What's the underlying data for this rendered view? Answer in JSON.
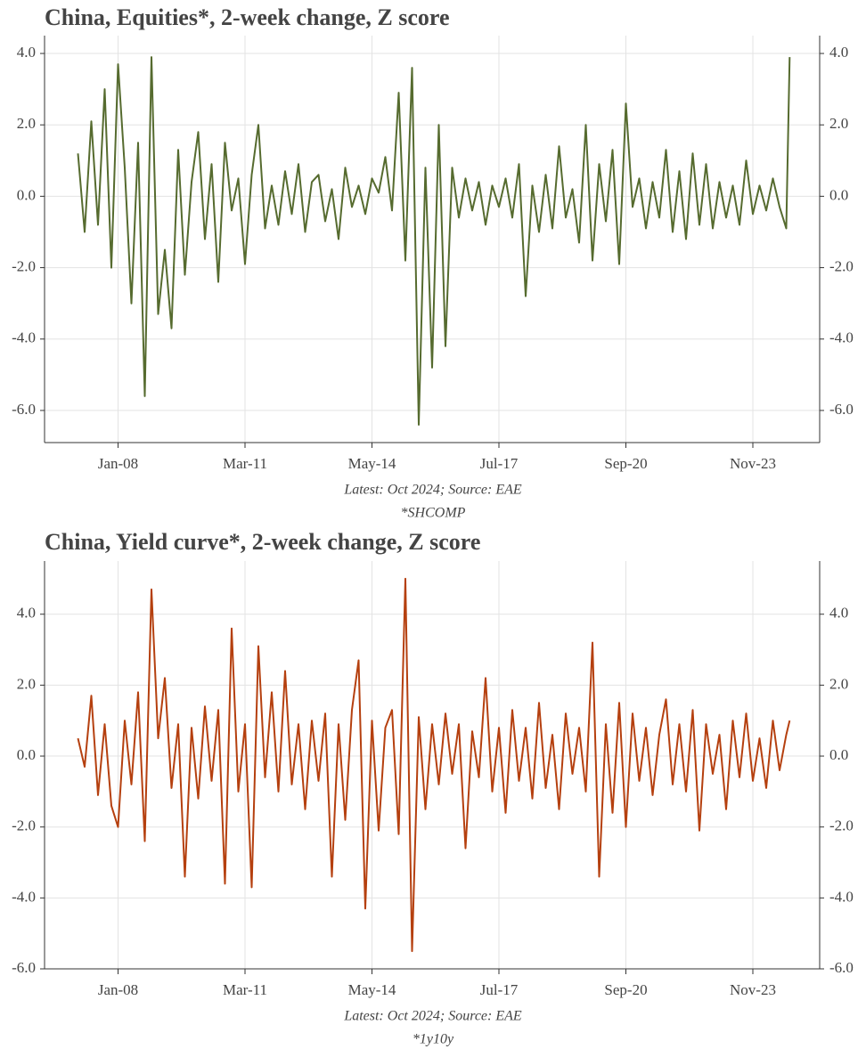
{
  "chart_data": [
    {
      "type": "line",
      "title": "China, Equities*, 2-week change, Z score",
      "annotations": [
        "Latest: Oct 2024; Source: EAE",
        "*SHCOMP"
      ],
      "color": "#566b2f",
      "x": [
        "2007-01",
        "2007-03",
        "2007-05",
        "2007-07",
        "2007-09",
        "2007-11",
        "2008-01",
        "2008-03",
        "2008-05",
        "2008-07",
        "2008-09",
        "2008-11",
        "2009-01",
        "2009-03",
        "2009-05",
        "2009-07",
        "2009-09",
        "2009-11",
        "2010-01",
        "2010-03",
        "2010-05",
        "2010-07",
        "2010-09",
        "2010-11",
        "2011-01",
        "2011-03",
        "2011-05",
        "2011-07",
        "2011-09",
        "2011-11",
        "2012-01",
        "2012-03",
        "2012-05",
        "2012-07",
        "2012-09",
        "2012-11",
        "2013-01",
        "2013-03",
        "2013-05",
        "2013-07",
        "2013-09",
        "2013-11",
        "2014-01",
        "2014-03",
        "2014-05",
        "2014-07",
        "2014-09",
        "2014-11",
        "2015-01",
        "2015-03",
        "2015-05",
        "2015-07",
        "2015-09",
        "2015-11",
        "2016-01",
        "2016-03",
        "2016-05",
        "2016-07",
        "2016-09",
        "2016-11",
        "2017-01",
        "2017-03",
        "2017-05",
        "2017-07",
        "2017-09",
        "2017-11",
        "2018-01",
        "2018-03",
        "2018-05",
        "2018-07",
        "2018-09",
        "2018-11",
        "2019-01",
        "2019-03",
        "2019-05",
        "2019-07",
        "2019-09",
        "2019-11",
        "2020-01",
        "2020-03",
        "2020-05",
        "2020-07",
        "2020-09",
        "2020-11",
        "2021-01",
        "2021-03",
        "2021-05",
        "2021-07",
        "2021-09",
        "2021-11",
        "2022-01",
        "2022-03",
        "2022-05",
        "2022-07",
        "2022-09",
        "2022-11",
        "2023-01",
        "2023-03",
        "2023-05",
        "2023-07",
        "2023-09",
        "2023-11",
        "2024-01",
        "2024-03",
        "2024-05",
        "2024-07",
        "2024-09",
        "2024-10"
      ],
      "values": [
        1.2,
        -1.0,
        2.1,
        -0.8,
        3.0,
        -2.0,
        3.7,
        0.8,
        -3.0,
        1.5,
        -5.6,
        3.9,
        -3.3,
        -1.5,
        -3.7,
        1.3,
        -2.2,
        0.4,
        1.8,
        -1.2,
        0.9,
        -2.4,
        1.5,
        -0.4,
        0.5,
        -1.9,
        0.6,
        2.0,
        -0.9,
        0.3,
        -0.8,
        0.7,
        -0.5,
        0.9,
        -1.0,
        0.4,
        0.6,
        -0.7,
        0.2,
        -1.2,
        0.8,
        -0.3,
        0.3,
        -0.5,
        0.5,
        0.1,
        1.1,
        -0.4,
        2.9,
        -1.8,
        3.6,
        -6.4,
        0.8,
        -4.8,
        2.0,
        -4.2,
        0.8,
        -0.6,
        0.5,
        -0.4,
        0.4,
        -0.8,
        0.3,
        -0.3,
        0.5,
        -0.6,
        0.9,
        -2.8,
        0.3,
        -1.0,
        0.6,
        -0.9,
        1.4,
        -0.6,
        0.2,
        -1.3,
        2.0,
        -1.8,
        0.9,
        -0.7,
        1.3,
        -1.9,
        2.6,
        -0.3,
        0.5,
        -0.9,
        0.4,
        -0.6,
        1.3,
        -1.0,
        0.7,
        -1.2,
        1.2,
        -0.8,
        0.9,
        -0.9,
        0.4,
        -0.6,
        0.3,
        -0.8,
        1.0,
        -0.5,
        0.3,
        -0.4,
        0.5,
        -0.3,
        -0.9,
        3.9
      ],
      "xlim": [
        "2006-03",
        "2025-07"
      ],
      "xticks": [
        {
          "value": "2008-01",
          "label": "Jan-08"
        },
        {
          "value": "2011-03",
          "label": "Mar-11"
        },
        {
          "value": "2014-05",
          "label": "May-14"
        },
        {
          "value": "2017-07",
          "label": "Jul-17"
        },
        {
          "value": "2020-09",
          "label": "Sep-20"
        },
        {
          "value": "2023-11",
          "label": "Nov-23"
        }
      ],
      "ylim": [
        -6.9,
        4.5
      ],
      "yticks": [
        {
          "value": 4,
          "label": "4.0"
        },
        {
          "value": 2,
          "label": "2.0"
        },
        {
          "value": 0,
          "label": "0.0"
        },
        {
          "value": -2,
          "label": "-2.0"
        },
        {
          "value": -4,
          "label": "-4.0"
        },
        {
          "value": -6,
          "label": "-6.0"
        }
      ],
      "grid": true
    },
    {
      "type": "line",
      "title": "China, Yield curve*, 2-week change, Z score",
      "annotations": [
        "Latest: Oct 2024; Source: EAE",
        "*1y10y"
      ],
      "color": "#b5400f",
      "x": [
        "2007-01",
        "2007-03",
        "2007-05",
        "2007-07",
        "2007-09",
        "2007-11",
        "2008-01",
        "2008-03",
        "2008-05",
        "2008-07",
        "2008-09",
        "2008-11",
        "2009-01",
        "2009-03",
        "2009-05",
        "2009-07",
        "2009-09",
        "2009-11",
        "2010-01",
        "2010-03",
        "2010-05",
        "2010-07",
        "2010-09",
        "2010-11",
        "2011-01",
        "2011-03",
        "2011-05",
        "2011-07",
        "2011-09",
        "2011-11",
        "2012-01",
        "2012-03",
        "2012-05",
        "2012-07",
        "2012-09",
        "2012-11",
        "2013-01",
        "2013-03",
        "2013-05",
        "2013-07",
        "2013-09",
        "2013-11",
        "2014-01",
        "2014-03",
        "2014-05",
        "2014-07",
        "2014-09",
        "2014-11",
        "2015-01",
        "2015-03",
        "2015-05",
        "2015-07",
        "2015-09",
        "2015-11",
        "2016-01",
        "2016-03",
        "2016-05",
        "2016-07",
        "2016-09",
        "2016-11",
        "2017-01",
        "2017-03",
        "2017-05",
        "2017-07",
        "2017-09",
        "2017-11",
        "2018-01",
        "2018-03",
        "2018-05",
        "2018-07",
        "2018-09",
        "2018-11",
        "2019-01",
        "2019-03",
        "2019-05",
        "2019-07",
        "2019-09",
        "2019-11",
        "2020-01",
        "2020-03",
        "2020-05",
        "2020-07",
        "2020-09",
        "2020-11",
        "2021-01",
        "2021-03",
        "2021-05",
        "2021-07",
        "2021-09",
        "2021-11",
        "2022-01",
        "2022-03",
        "2022-05",
        "2022-07",
        "2022-09",
        "2022-11",
        "2023-01",
        "2023-03",
        "2023-05",
        "2023-07",
        "2023-09",
        "2023-11",
        "2024-01",
        "2024-03",
        "2024-05",
        "2024-07",
        "2024-09",
        "2024-10"
      ],
      "values": [
        0.5,
        -0.3,
        1.7,
        -1.1,
        0.9,
        -1.4,
        -2.0,
        1.0,
        -0.8,
        1.8,
        -2.4,
        4.7,
        0.5,
        2.2,
        -0.9,
        0.9,
        -3.4,
        0.8,
        -1.2,
        1.4,
        -0.7,
        1.3,
        -3.6,
        3.6,
        -1.0,
        0.9,
        -3.7,
        3.1,
        -0.6,
        1.8,
        -1.0,
        2.4,
        -0.8,
        0.9,
        -1.5,
        1.0,
        -0.7,
        1.2,
        -3.4,
        0.9,
        -1.8,
        1.3,
        2.7,
        -4.3,
        1.0,
        -2.1,
        0.8,
        1.3,
        -2.2,
        5.0,
        -5.5,
        1.1,
        -1.5,
        0.9,
        -0.8,
        1.2,
        -0.5,
        0.9,
        -2.6,
        0.7,
        -0.6,
        2.2,
        -1.0,
        0.8,
        -1.6,
        1.3,
        -0.7,
        0.8,
        -1.2,
        1.5,
        -0.9,
        0.6,
        -1.5,
        1.2,
        -0.5,
        0.8,
        -1.0,
        3.2,
        -3.4,
        0.9,
        -1.6,
        1.5,
        -2.0,
        1.2,
        -0.7,
        0.8,
        -1.1,
        0.6,
        1.6,
        -0.8,
        0.9,
        -1.0,
        1.3,
        -2.1,
        0.9,
        -0.5,
        0.6,
        -1.5,
        1.0,
        -0.6,
        1.2,
        -0.7,
        0.5,
        -0.9,
        1.0,
        -0.4,
        0.6,
        1.0
      ],
      "xlim": [
        "2006-03",
        "2025-07"
      ],
      "xticks": [
        {
          "value": "2008-01",
          "label": "Jan-08"
        },
        {
          "value": "2011-03",
          "label": "Mar-11"
        },
        {
          "value": "2014-05",
          "label": "May-14"
        },
        {
          "value": "2017-07",
          "label": "Jul-17"
        },
        {
          "value": "2020-09",
          "label": "Sep-20"
        },
        {
          "value": "2023-11",
          "label": "Nov-23"
        }
      ],
      "ylim": [
        -6.0,
        5.5
      ],
      "yticks": [
        {
          "value": 4,
          "label": "4.0"
        },
        {
          "value": 2,
          "label": "2.0"
        },
        {
          "value": 0,
          "label": "0.0"
        },
        {
          "value": -2,
          "label": "-2.0"
        },
        {
          "value": -4,
          "label": "-4.0"
        },
        {
          "value": -6,
          "label": "-6.0"
        }
      ],
      "grid": true
    }
  ]
}
